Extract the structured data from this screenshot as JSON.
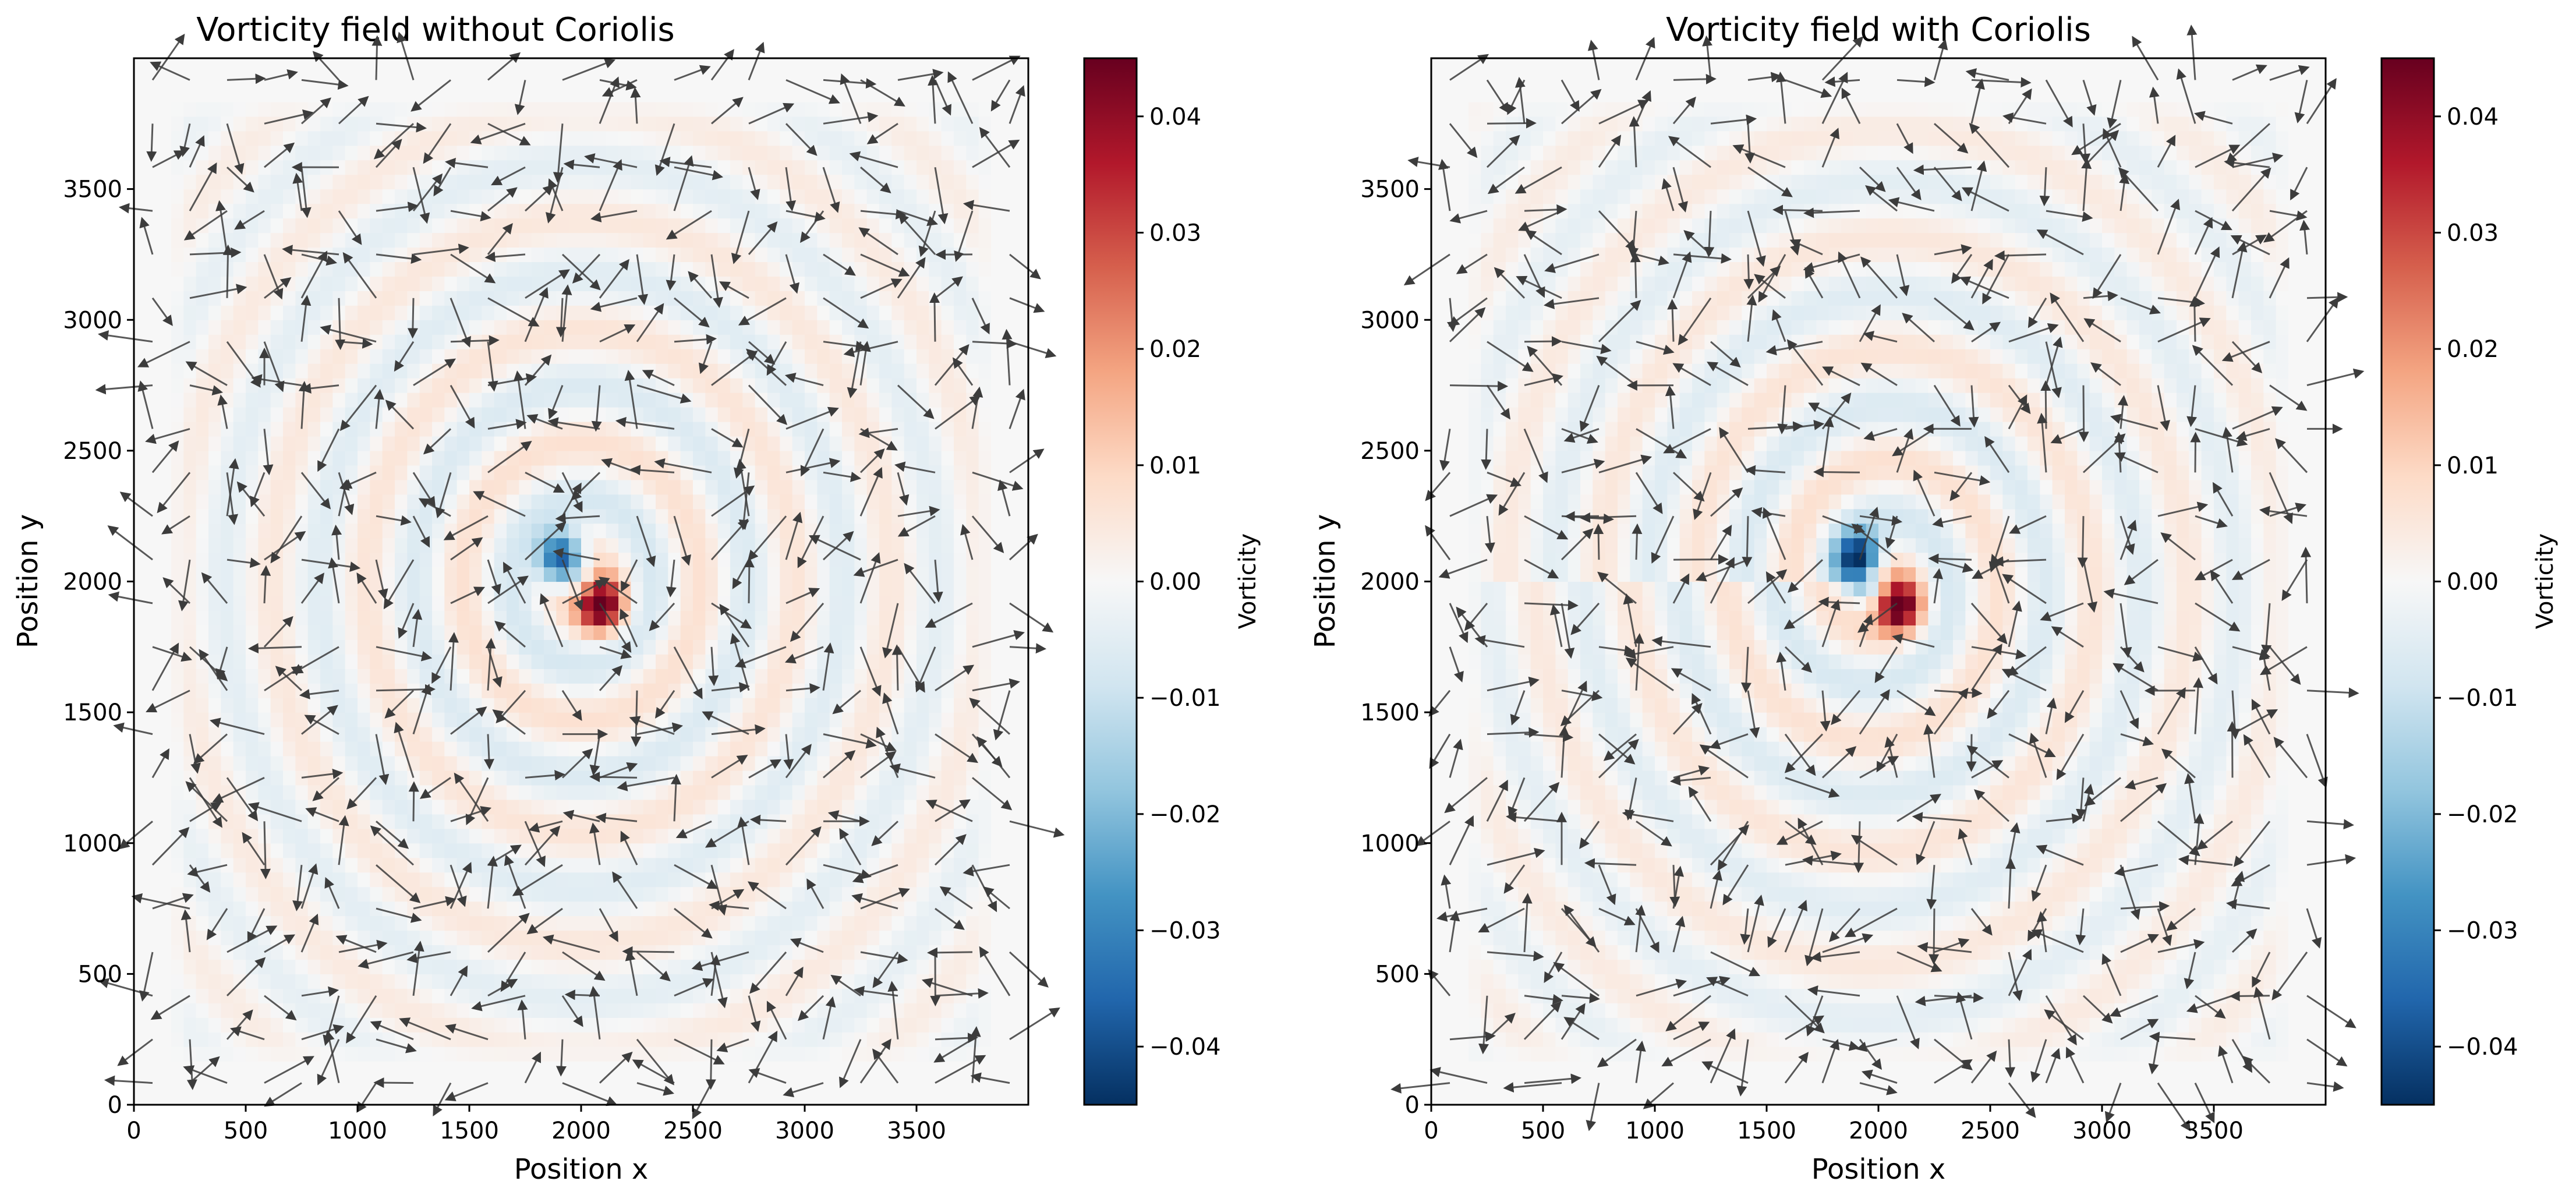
{
  "chart_data": [
    {
      "type": "heatmap",
      "title": "Vorticity field without Coriolis",
      "xlabel": "Position x",
      "ylabel": "Position y",
      "colorbar_label": "Vorticity",
      "xlim": [
        0,
        4000
      ],
      "ylim": [
        0,
        4000
      ],
      "xticks": [
        "0",
        "500",
        "1000",
        "1500",
        "2000",
        "2500",
        "3000",
        "3500"
      ],
      "yticks": [
        "0",
        "500",
        "1000",
        "1500",
        "2000",
        "2500",
        "3000",
        "3500"
      ],
      "colorbar_range": [
        -0.045,
        0.045
      ],
      "colorbar_ticks": [
        "−0.04",
        "−0.03",
        "−0.02",
        "−0.01",
        "0.00",
        "0.01",
        "0.02",
        "0.03",
        "0.04"
      ],
      "colormap": "RdBu_r",
      "vortex_center": [
        2000,
        2000
      ],
      "vortex_min": -0.045,
      "vortex_max": 0.045,
      "overlay": "quiver (velocity vectors)",
      "arrow_color": "#3c3c3c"
    },
    {
      "type": "heatmap",
      "title": "Vorticity field with Coriolis",
      "xlabel": "Position x",
      "ylabel": "Position y",
      "colorbar_label": "Vorticity",
      "xlim": [
        0,
        4000
      ],
      "ylim": [
        0,
        4000
      ],
      "xticks": [
        "0",
        "500",
        "1000",
        "1500",
        "2000",
        "2500",
        "3000",
        "3500"
      ],
      "yticks": [
        "0",
        "500",
        "1000",
        "1500",
        "2000",
        "2500",
        "3000",
        "3500"
      ],
      "colorbar_range": [
        -0.045,
        0.045
      ],
      "colorbar_ticks": [
        "−0.04",
        "−0.03",
        "−0.02",
        "−0.01",
        "0.00",
        "0.01",
        "0.02",
        "0.03",
        "0.04"
      ],
      "colormap": "RdBu_r",
      "vortex_center": [
        2000,
        2000
      ],
      "vortex_min": -0.045,
      "vortex_max": 0.045,
      "overlay": "quiver (velocity vectors)",
      "arrow_color": "#3c3c3c"
    }
  ]
}
